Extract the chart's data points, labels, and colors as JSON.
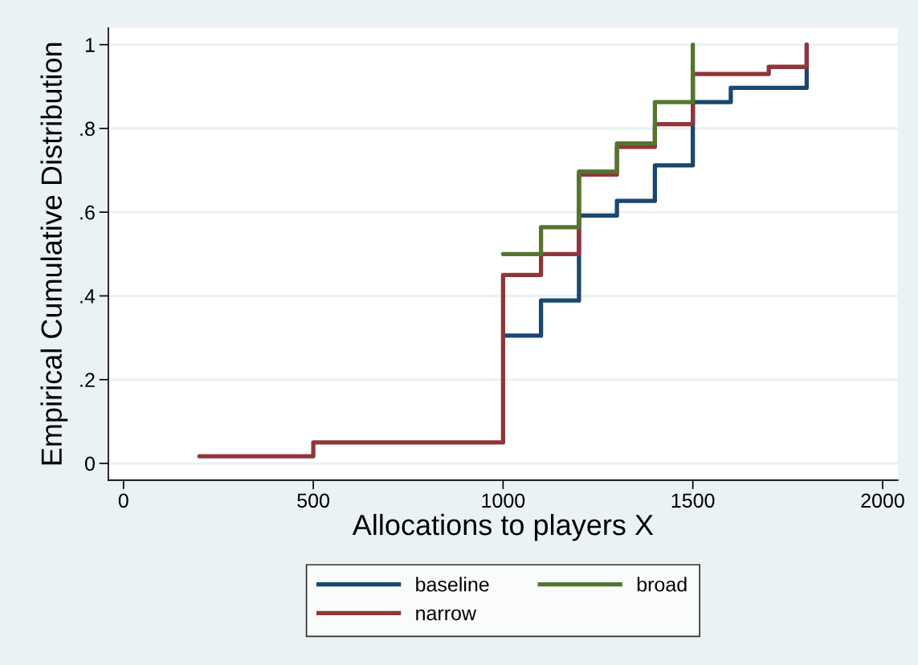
{
  "chart_data": {
    "type": "step",
    "xlabel": "Allocations to players X",
    "ylabel": "Empirical Cumulative Distribution",
    "series": [
      {
        "name": "baseline",
        "color": "#1a476f",
        "x": [
          1000,
          1100,
          1200,
          1300,
          1400,
          1500,
          1600,
          1800
        ],
        "values": [
          0.305,
          0.389,
          0.592,
          0.627,
          0.712,
          0.863,
          0.897,
          1
        ]
      },
      {
        "name": "narrow",
        "color": "#90353b",
        "x": [
          200,
          500,
          1000,
          1100,
          1200,
          1300,
          1400,
          1500,
          1700,
          1800
        ],
        "values": [
          0.017,
          0.05,
          0.45,
          0.5,
          0.69,
          0.756,
          0.81,
          0.93,
          0.947,
          1
        ]
      },
      {
        "name": "broad",
        "color": "#55752f",
        "x": [
          1000,
          1100,
          1200,
          1300,
          1400,
          1500
        ],
        "values": [
          0.5,
          0.564,
          0.697,
          0.764,
          0.863,
          1
        ]
      }
    ],
    "xlim": [
      -40,
      2040
    ],
    "xticks": [
      0,
      500,
      1000,
      1500,
      2000
    ],
    "ylim": [
      -0.04,
      1.04
    ],
    "yticks": [
      0,
      {
        "value": 0.2,
        "label": ".2"
      },
      {
        "value": 0.4,
        "label": ".4"
      },
      {
        "value": 0.6,
        "label": ".6"
      },
      {
        "value": 0.8,
        "label": ".8"
      },
      1
    ],
    "grid": "y",
    "legend": "bottom",
    "line_style": "solid",
    "marker": "none"
  }
}
